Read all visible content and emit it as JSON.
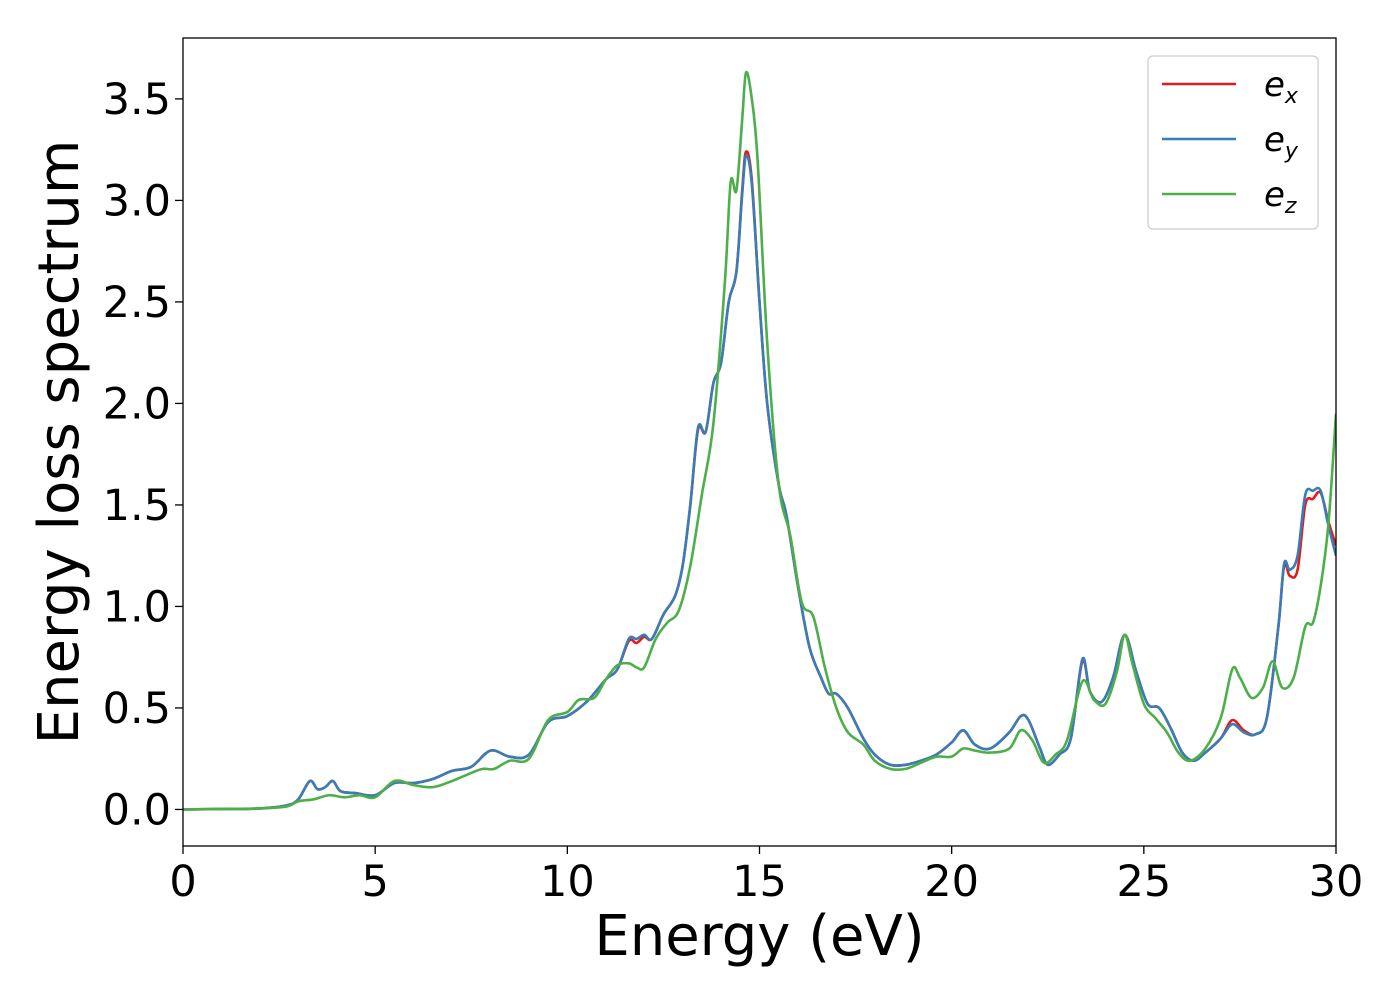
{
  "chart_data": {
    "type": "line",
    "title": "",
    "xlabel": "Energy (eV)",
    "ylabel": "Energy loss spectrum",
    "xlim": [
      0,
      30
    ],
    "ylim": [
      -0.18,
      3.8
    ],
    "xticks": [
      0,
      5,
      10,
      15,
      20,
      25,
      30
    ],
    "xtick_labels": [
      "0",
      "5",
      "10",
      "15",
      "20",
      "25",
      "30"
    ],
    "yticks": [
      0.0,
      0.5,
      1.0,
      1.5,
      2.0,
      2.5,
      3.0,
      3.5
    ],
    "ytick_labels": [
      "0.0",
      "0.5",
      "1.0",
      "1.5",
      "2.0",
      "2.5",
      "3.0",
      "3.5"
    ],
    "grid": false,
    "legend_position": "top-right",
    "series": [
      {
        "name": "e_x",
        "legend_base": "e",
        "legend_sub": "x",
        "color": "#e41a1c",
        "points": [
          [
            0,
            0
          ],
          [
            1,
            0.002
          ],
          [
            2,
            0.005
          ],
          [
            2.7,
            0.02
          ],
          [
            3.0,
            0.05
          ],
          [
            3.3,
            0.14
          ],
          [
            3.5,
            0.1
          ],
          [
            3.7,
            0.11
          ],
          [
            3.9,
            0.14
          ],
          [
            4.1,
            0.09
          ],
          [
            4.5,
            0.08
          ],
          [
            5.0,
            0.07
          ],
          [
            5.5,
            0.13
          ],
          [
            6.0,
            0.13
          ],
          [
            6.5,
            0.15
          ],
          [
            7.0,
            0.19
          ],
          [
            7.5,
            0.21
          ],
          [
            8.0,
            0.29
          ],
          [
            8.5,
            0.26
          ],
          [
            9.0,
            0.27
          ],
          [
            9.5,
            0.43
          ],
          [
            10.0,
            0.46
          ],
          [
            10.5,
            0.53
          ],
          [
            11.0,
            0.64
          ],
          [
            11.3,
            0.69
          ],
          [
            11.6,
            0.83
          ],
          [
            11.8,
            0.82
          ],
          [
            12.0,
            0.85
          ],
          [
            12.2,
            0.84
          ],
          [
            12.5,
            0.96
          ],
          [
            12.8,
            1.05
          ],
          [
            13.0,
            1.2
          ],
          [
            13.2,
            1.5
          ],
          [
            13.4,
            1.87
          ],
          [
            13.6,
            1.86
          ],
          [
            13.8,
            2.1
          ],
          [
            14.0,
            2.2
          ],
          [
            14.2,
            2.5
          ],
          [
            14.4,
            2.65
          ],
          [
            14.55,
            3.05
          ],
          [
            14.65,
            3.24
          ],
          [
            14.8,
            3.1
          ],
          [
            15.0,
            2.5
          ],
          [
            15.2,
            2.0
          ],
          [
            15.5,
            1.6
          ],
          [
            15.7,
            1.45
          ],
          [
            16.0,
            1.1
          ],
          [
            16.3,
            0.8
          ],
          [
            16.6,
            0.65
          ],
          [
            16.8,
            0.57
          ],
          [
            17.0,
            0.57
          ],
          [
            17.3,
            0.5
          ],
          [
            17.7,
            0.35
          ],
          [
            18.0,
            0.27
          ],
          [
            18.4,
            0.22
          ],
          [
            18.8,
            0.22
          ],
          [
            19.2,
            0.24
          ],
          [
            19.6,
            0.27
          ],
          [
            20.0,
            0.33
          ],
          [
            20.3,
            0.39
          ],
          [
            20.6,
            0.32
          ],
          [
            21.0,
            0.3
          ],
          [
            21.5,
            0.38
          ],
          [
            21.8,
            0.46
          ],
          [
            22.0,
            0.44
          ],
          [
            22.3,
            0.3
          ],
          [
            22.5,
            0.22
          ],
          [
            22.8,
            0.27
          ],
          [
            23.1,
            0.35
          ],
          [
            23.4,
            0.73
          ],
          [
            23.6,
            0.58
          ],
          [
            23.9,
            0.53
          ],
          [
            24.2,
            0.65
          ],
          [
            24.5,
            0.86
          ],
          [
            24.8,
            0.68
          ],
          [
            25.1,
            0.52
          ],
          [
            25.4,
            0.5
          ],
          [
            25.7,
            0.4
          ],
          [
            26.0,
            0.28
          ],
          [
            26.3,
            0.24
          ],
          [
            26.6,
            0.28
          ],
          [
            27.0,
            0.35
          ],
          [
            27.3,
            0.44
          ],
          [
            27.6,
            0.39
          ],
          [
            27.9,
            0.37
          ],
          [
            28.2,
            0.45
          ],
          [
            28.5,
            0.9
          ],
          [
            28.65,
            1.2
          ],
          [
            28.8,
            1.15
          ],
          [
            29.0,
            1.18
          ],
          [
            29.2,
            1.5
          ],
          [
            29.4,
            1.53
          ],
          [
            29.6,
            1.56
          ],
          [
            29.8,
            1.42
          ],
          [
            30.0,
            1.3
          ]
        ]
      },
      {
        "name": "e_y",
        "legend_base": "e",
        "legend_sub": "y",
        "color": "#377eb8",
        "points": [
          [
            0,
            0
          ],
          [
            1,
            0.002
          ],
          [
            2,
            0.005
          ],
          [
            2.7,
            0.02
          ],
          [
            3.0,
            0.05
          ],
          [
            3.3,
            0.14
          ],
          [
            3.5,
            0.1
          ],
          [
            3.7,
            0.11
          ],
          [
            3.9,
            0.14
          ],
          [
            4.1,
            0.09
          ],
          [
            4.5,
            0.08
          ],
          [
            5.0,
            0.07
          ],
          [
            5.5,
            0.13
          ],
          [
            6.0,
            0.13
          ],
          [
            6.5,
            0.15
          ],
          [
            7.0,
            0.19
          ],
          [
            7.5,
            0.21
          ],
          [
            8.0,
            0.29
          ],
          [
            8.5,
            0.26
          ],
          [
            9.0,
            0.27
          ],
          [
            9.5,
            0.43
          ],
          [
            10.0,
            0.46
          ],
          [
            10.5,
            0.53
          ],
          [
            11.0,
            0.64
          ],
          [
            11.3,
            0.69
          ],
          [
            11.6,
            0.84
          ],
          [
            11.8,
            0.84
          ],
          [
            12.0,
            0.86
          ],
          [
            12.2,
            0.84
          ],
          [
            12.5,
            0.96
          ],
          [
            12.8,
            1.05
          ],
          [
            13.0,
            1.2
          ],
          [
            13.2,
            1.5
          ],
          [
            13.4,
            1.88
          ],
          [
            13.6,
            1.86
          ],
          [
            13.8,
            2.1
          ],
          [
            14.0,
            2.2
          ],
          [
            14.2,
            2.5
          ],
          [
            14.4,
            2.65
          ],
          [
            14.55,
            3.03
          ],
          [
            14.65,
            3.22
          ],
          [
            14.8,
            3.08
          ],
          [
            15.0,
            2.5
          ],
          [
            15.2,
            2.0
          ],
          [
            15.5,
            1.6
          ],
          [
            15.7,
            1.45
          ],
          [
            16.0,
            1.1
          ],
          [
            16.3,
            0.8
          ],
          [
            16.6,
            0.65
          ],
          [
            16.8,
            0.57
          ],
          [
            17.0,
            0.57
          ],
          [
            17.3,
            0.5
          ],
          [
            17.7,
            0.35
          ],
          [
            18.0,
            0.27
          ],
          [
            18.4,
            0.22
          ],
          [
            18.8,
            0.22
          ],
          [
            19.2,
            0.24
          ],
          [
            19.6,
            0.27
          ],
          [
            20.0,
            0.33
          ],
          [
            20.3,
            0.39
          ],
          [
            20.6,
            0.32
          ],
          [
            21.0,
            0.3
          ],
          [
            21.5,
            0.38
          ],
          [
            21.8,
            0.46
          ],
          [
            22.0,
            0.44
          ],
          [
            22.3,
            0.3
          ],
          [
            22.5,
            0.22
          ],
          [
            22.8,
            0.27
          ],
          [
            23.1,
            0.35
          ],
          [
            23.4,
            0.74
          ],
          [
            23.6,
            0.58
          ],
          [
            23.9,
            0.53
          ],
          [
            24.2,
            0.65
          ],
          [
            24.5,
            0.86
          ],
          [
            24.8,
            0.68
          ],
          [
            25.1,
            0.52
          ],
          [
            25.4,
            0.5
          ],
          [
            25.7,
            0.4
          ],
          [
            26.0,
            0.28
          ],
          [
            26.3,
            0.24
          ],
          [
            26.6,
            0.28
          ],
          [
            27.0,
            0.35
          ],
          [
            27.3,
            0.42
          ],
          [
            27.6,
            0.38
          ],
          [
            27.9,
            0.37
          ],
          [
            28.2,
            0.45
          ],
          [
            28.5,
            0.9
          ],
          [
            28.65,
            1.21
          ],
          [
            28.8,
            1.18
          ],
          [
            29.0,
            1.25
          ],
          [
            29.2,
            1.55
          ],
          [
            29.4,
            1.57
          ],
          [
            29.6,
            1.57
          ],
          [
            29.8,
            1.4
          ],
          [
            30.0,
            1.25
          ]
        ]
      },
      {
        "name": "e_z",
        "legend_base": "e",
        "legend_sub": "z",
        "color": "#4daf4a",
        "points": [
          [
            0,
            0
          ],
          [
            1,
            0.002
          ],
          [
            2,
            0.005
          ],
          [
            2.7,
            0.015
          ],
          [
            3.0,
            0.04
          ],
          [
            3.4,
            0.05
          ],
          [
            3.8,
            0.07
          ],
          [
            4.2,
            0.06
          ],
          [
            4.6,
            0.07
          ],
          [
            5.0,
            0.06
          ],
          [
            5.5,
            0.14
          ],
          [
            6.0,
            0.12
          ],
          [
            6.5,
            0.11
          ],
          [
            7.0,
            0.14
          ],
          [
            7.5,
            0.18
          ],
          [
            7.8,
            0.2
          ],
          [
            8.1,
            0.2
          ],
          [
            8.5,
            0.24
          ],
          [
            9.0,
            0.25
          ],
          [
            9.5,
            0.44
          ],
          [
            10.0,
            0.48
          ],
          [
            10.3,
            0.54
          ],
          [
            10.7,
            0.55
          ],
          [
            11.0,
            0.64
          ],
          [
            11.3,
            0.71
          ],
          [
            11.6,
            0.72
          ],
          [
            11.8,
            0.7
          ],
          [
            12.0,
            0.7
          ],
          [
            12.3,
            0.84
          ],
          [
            12.6,
            0.92
          ],
          [
            12.9,
            0.98
          ],
          [
            13.2,
            1.2
          ],
          [
            13.5,
            1.55
          ],
          [
            13.8,
            1.9
          ],
          [
            14.1,
            2.6
          ],
          [
            14.25,
            3.09
          ],
          [
            14.4,
            3.05
          ],
          [
            14.55,
            3.4
          ],
          [
            14.65,
            3.63
          ],
          [
            14.8,
            3.5
          ],
          [
            14.95,
            3.2
          ],
          [
            15.2,
            2.3
          ],
          [
            15.5,
            1.6
          ],
          [
            15.8,
            1.35
          ],
          [
            16.1,
            1.02
          ],
          [
            16.4,
            0.95
          ],
          [
            16.7,
            0.7
          ],
          [
            17.0,
            0.5
          ],
          [
            17.3,
            0.38
          ],
          [
            17.7,
            0.32
          ],
          [
            18.0,
            0.24
          ],
          [
            18.4,
            0.2
          ],
          [
            18.8,
            0.2
          ],
          [
            19.2,
            0.23
          ],
          [
            19.6,
            0.26
          ],
          [
            20.0,
            0.26
          ],
          [
            20.3,
            0.3
          ],
          [
            20.6,
            0.29
          ],
          [
            21.0,
            0.28
          ],
          [
            21.5,
            0.3
          ],
          [
            21.8,
            0.39
          ],
          [
            22.1,
            0.34
          ],
          [
            22.4,
            0.23
          ],
          [
            22.7,
            0.27
          ],
          [
            23.0,
            0.34
          ],
          [
            23.4,
            0.63
          ],
          [
            23.7,
            0.54
          ],
          [
            24.0,
            0.52
          ],
          [
            24.3,
            0.68
          ],
          [
            24.5,
            0.86
          ],
          [
            24.7,
            0.72
          ],
          [
            25.0,
            0.52
          ],
          [
            25.3,
            0.45
          ],
          [
            25.6,
            0.38
          ],
          [
            25.9,
            0.28
          ],
          [
            26.2,
            0.24
          ],
          [
            26.6,
            0.3
          ],
          [
            27.0,
            0.45
          ],
          [
            27.3,
            0.69
          ],
          [
            27.5,
            0.65
          ],
          [
            27.8,
            0.55
          ],
          [
            28.1,
            0.6
          ],
          [
            28.35,
            0.73
          ],
          [
            28.6,
            0.6
          ],
          [
            28.9,
            0.65
          ],
          [
            29.2,
            0.9
          ],
          [
            29.4,
            0.92
          ],
          [
            29.6,
            1.1
          ],
          [
            29.8,
            1.4
          ],
          [
            30.0,
            1.95
          ]
        ]
      }
    ]
  }
}
